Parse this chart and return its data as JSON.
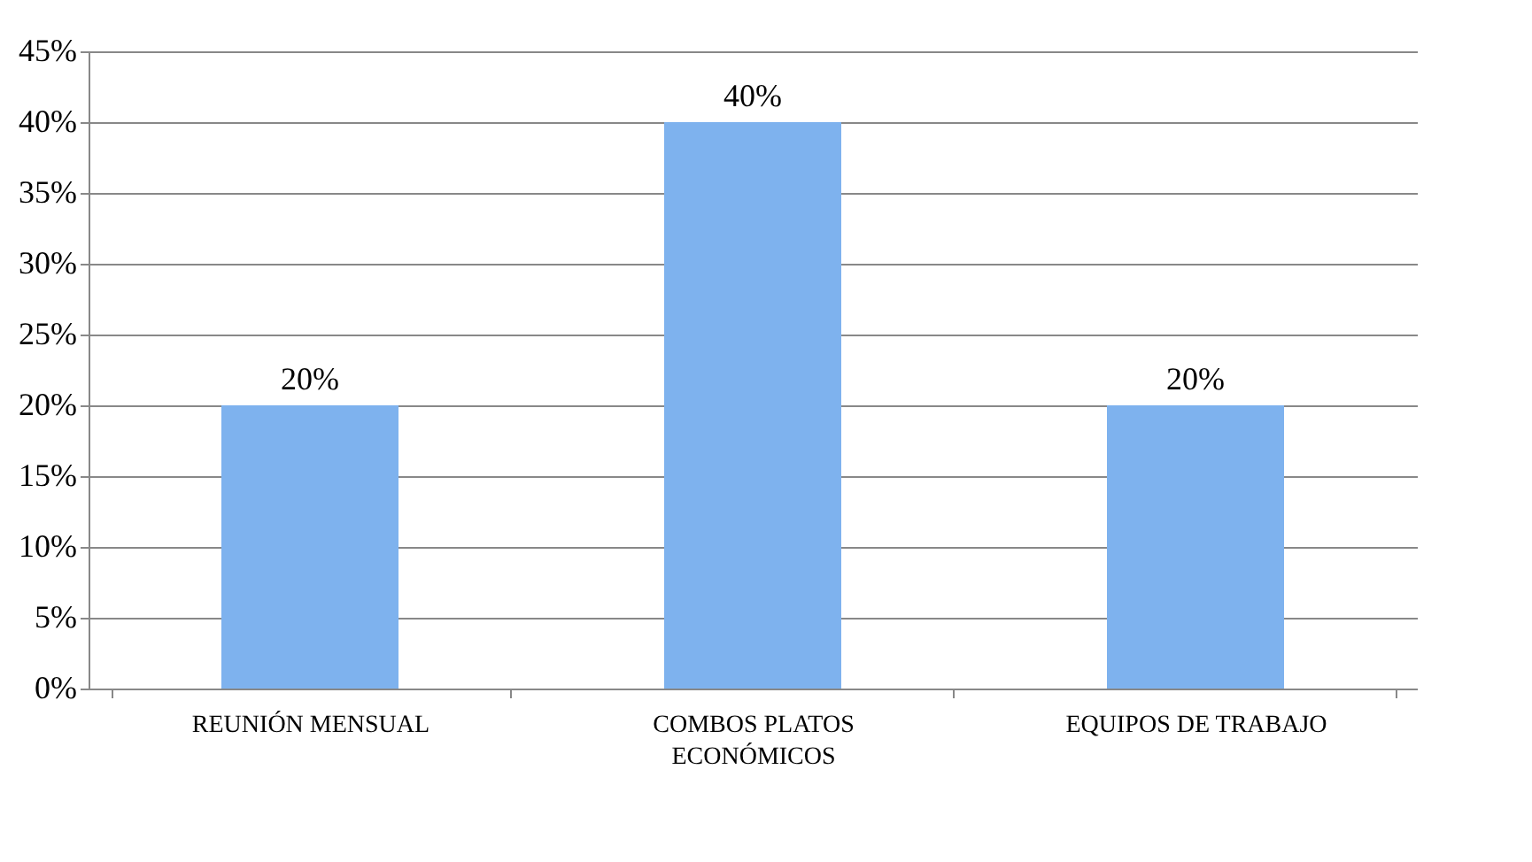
{
  "chart_data": {
    "type": "bar",
    "categories": [
      "REUNIÓN MENSUAL",
      "COMBOS PLATOS ECONÓMICOS",
      "EQUIPOS DE TRABAJO"
    ],
    "values": [
      20,
      40,
      20
    ],
    "value_labels": [
      "20%",
      "40%",
      "20%"
    ],
    "color": "#7eb2ee",
    "ylim": [
      0,
      45
    ],
    "yticks": [
      {
        "value": 0,
        "label": "0%"
      },
      {
        "value": 5,
        "label": "5%"
      },
      {
        "value": 10,
        "label": "10%"
      },
      {
        "value": 15,
        "label": "15%"
      },
      {
        "value": 20,
        "label": "20%"
      },
      {
        "value": 25,
        "label": "25%"
      },
      {
        "value": 30,
        "label": "30%"
      },
      {
        "value": 35,
        "label": "35%"
      },
      {
        "value": 40,
        "label": "40%"
      },
      {
        "value": 45,
        "label": "45%"
      }
    ],
    "grid": "y"
  }
}
